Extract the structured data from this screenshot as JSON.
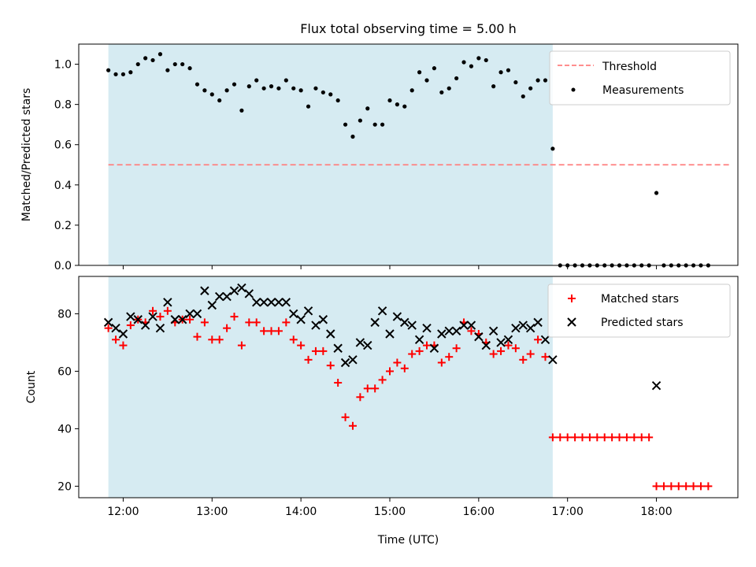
{
  "chart_data": [
    {
      "type": "scatter",
      "title": "Flux total observing time = 5.00 h",
      "xlabel": "",
      "ylabel": "Matched/Predicted stars",
      "xlim": [
        "11:30",
        "18:55"
      ],
      "ylim": [
        0,
        1.1
      ],
      "yticks": [
        "0.0",
        "0.2",
        "0.4",
        "0.6",
        "0.8",
        "1.0"
      ],
      "shaded_span": [
        "11:50",
        "16:50"
      ],
      "legend_position": "upper right",
      "series": [
        {
          "name": "Threshold",
          "style": "dashed-line",
          "color": "#ff7f7f",
          "x": [
            "11:50",
            "18:50"
          ],
          "y": [
            0.5,
            0.5
          ]
        },
        {
          "name": "Measurements",
          "style": "dot",
          "color": "#000000",
          "x": [
            "11:50",
            "11:55",
            "12:00",
            "12:05",
            "12:10",
            "12:15",
            "12:20",
            "12:25",
            "12:30",
            "12:35",
            "12:40",
            "12:45",
            "12:50",
            "12:55",
            "13:00",
            "13:05",
            "13:10",
            "13:15",
            "13:20",
            "13:25",
            "13:30",
            "13:35",
            "13:40",
            "13:45",
            "13:50",
            "13:55",
            "14:00",
            "14:05",
            "14:10",
            "14:15",
            "14:20",
            "14:25",
            "14:30",
            "14:35",
            "14:40",
            "14:45",
            "14:50",
            "14:55",
            "15:00",
            "15:05",
            "15:10",
            "15:15",
            "15:20",
            "15:25",
            "15:30",
            "15:35",
            "15:40",
            "15:45",
            "15:50",
            "15:55",
            "16:00",
            "16:05",
            "16:10",
            "16:15",
            "16:20",
            "16:25",
            "16:30",
            "16:35",
            "16:40",
            "16:45",
            "16:50",
            "16:55",
            "17:00",
            "17:05",
            "17:10",
            "17:15",
            "17:20",
            "17:25",
            "17:30",
            "17:35",
            "17:40",
            "17:45",
            "17:50",
            "17:55",
            "18:00",
            "18:05",
            "18:10",
            "18:15",
            "18:20",
            "18:25",
            "18:30",
            "18:35"
          ],
          "y": [
            0.97,
            0.95,
            0.95,
            0.96,
            1.0,
            1.03,
            1.02,
            1.05,
            0.97,
            1.0,
            1.0,
            0.98,
            0.9,
            0.87,
            0.85,
            0.82,
            0.87,
            0.9,
            0.77,
            0.89,
            0.92,
            0.88,
            0.89,
            0.88,
            0.92,
            0.88,
            0.87,
            0.79,
            0.88,
            0.86,
            0.85,
            0.82,
            0.7,
            0.64,
            0.72,
            0.78,
            0.7,
            0.7,
            0.82,
            0.8,
            0.79,
            0.87,
            0.96,
            0.92,
            0.98,
            0.86,
            0.88,
            0.93,
            1.01,
            0.99,
            1.03,
            1.02,
            0.89,
            0.96,
            0.97,
            0.91,
            0.84,
            0.88,
            0.92,
            0.92,
            0.58,
            0,
            0,
            0,
            0,
            0,
            0,
            0,
            0,
            0,
            0,
            0,
            0,
            0,
            0.36,
            0,
            0,
            0,
            0,
            0,
            0,
            0
          ]
        }
      ]
    },
    {
      "type": "scatter",
      "title": "",
      "xlabel": "Time (UTC)",
      "ylabel": "Count",
      "xlim": [
        "11:30",
        "18:55"
      ],
      "ylim": [
        16,
        93
      ],
      "xticks": [
        "12:00",
        "13:00",
        "14:00",
        "15:00",
        "16:00",
        "17:00",
        "18:00"
      ],
      "yticks": [
        "20",
        "40",
        "60",
        "80"
      ],
      "shaded_span": [
        "11:50",
        "16:50"
      ],
      "legend_position": "upper right",
      "series": [
        {
          "name": "Matched stars",
          "style": "plus",
          "color": "#ff0000",
          "x": [
            "11:50",
            "11:55",
            "12:00",
            "12:05",
            "12:10",
            "12:15",
            "12:20",
            "12:25",
            "12:30",
            "12:35",
            "12:40",
            "12:45",
            "12:50",
            "12:55",
            "13:00",
            "13:05",
            "13:10",
            "13:15",
            "13:20",
            "13:25",
            "13:30",
            "13:35",
            "13:40",
            "13:45",
            "13:50",
            "13:55",
            "14:00",
            "14:05",
            "14:10",
            "14:15",
            "14:20",
            "14:25",
            "14:30",
            "14:35",
            "14:40",
            "14:45",
            "14:50",
            "14:55",
            "15:00",
            "15:05",
            "15:10",
            "15:15",
            "15:20",
            "15:25",
            "15:30",
            "15:35",
            "15:40",
            "15:45",
            "15:50",
            "15:55",
            "16:00",
            "16:05",
            "16:10",
            "16:15",
            "16:20",
            "16:25",
            "16:30",
            "16:35",
            "16:40",
            "16:45",
            "16:50",
            "16:55",
            "17:00",
            "17:05",
            "17:10",
            "17:15",
            "17:20",
            "17:25",
            "17:30",
            "17:35",
            "17:40",
            "17:45",
            "17:50",
            "17:55",
            "18:00",
            "18:05",
            "18:10",
            "18:15",
            "18:20",
            "18:25",
            "18:30",
            "18:35"
          ],
          "y": [
            75,
            71,
            69,
            76,
            78,
            77,
            81,
            79,
            81,
            77,
            78,
            78,
            72,
            77,
            71,
            71,
            75,
            79,
            69,
            77,
            77,
            74,
            74,
            74,
            77,
            71,
            69,
            64,
            67,
            67,
            62,
            56,
            44,
            41,
            51,
            54,
            54,
            57,
            60,
            63,
            61,
            66,
            67,
            69,
            69,
            63,
            65,
            68,
            77,
            74,
            73,
            70,
            66,
            67,
            69,
            68,
            64,
            66,
            71,
            65,
            37,
            37,
            37,
            37,
            37,
            37,
            37,
            37,
            37,
            37,
            37,
            37,
            37,
            37,
            20,
            20,
            20,
            20,
            20,
            20,
            20,
            20
          ]
        },
        {
          "name": "Predicted stars",
          "style": "x",
          "color": "#000000",
          "x": [
            "11:50",
            "11:55",
            "12:00",
            "12:05",
            "12:10",
            "12:15",
            "12:20",
            "12:25",
            "12:30",
            "12:35",
            "12:40",
            "12:45",
            "12:50",
            "12:55",
            "13:00",
            "13:05",
            "13:10",
            "13:15",
            "13:20",
            "13:25",
            "13:30",
            "13:35",
            "13:40",
            "13:45",
            "13:50",
            "13:55",
            "14:00",
            "14:05",
            "14:10",
            "14:15",
            "14:20",
            "14:25",
            "14:30",
            "14:35",
            "14:40",
            "14:45",
            "14:50",
            "14:55",
            "15:00",
            "15:05",
            "15:10",
            "15:15",
            "15:20",
            "15:25",
            "15:30",
            "15:35",
            "15:40",
            "15:45",
            "15:50",
            "15:55",
            "16:00",
            "16:05",
            "16:10",
            "16:15",
            "16:20",
            "16:25",
            "16:30",
            "16:35",
            "16:40",
            "16:45",
            "16:50",
            "18:00"
          ],
          "y": [
            77,
            75,
            73,
            79,
            78,
            76,
            79,
            75,
            84,
            78,
            78,
            80,
            80,
            88,
            83,
            86,
            86,
            88,
            89,
            87,
            84,
            84,
            84,
            84,
            84,
            80,
            78,
            81,
            76,
            78,
            73,
            68,
            63,
            64,
            70,
            69,
            77,
            81,
            73,
            79,
            77,
            76,
            71,
            75,
            68,
            73,
            74,
            74,
            76,
            76,
            72,
            69,
            74,
            70,
            71,
            75,
            76,
            75,
            77,
            71,
            64,
            55
          ]
        }
      ]
    }
  ]
}
